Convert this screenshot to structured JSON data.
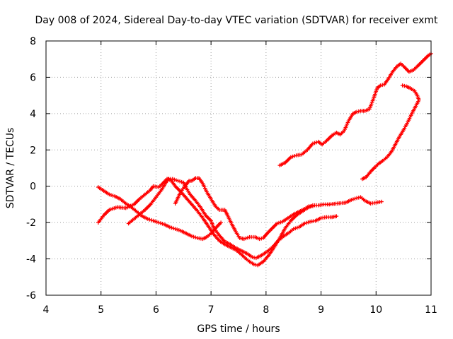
{
  "chart_data": {
    "type": "scatter",
    "title": "Day 008 of 2024, Sidereal Day-to-day VTEC variation (SDTVAR) for receiver exmt",
    "xlabel": "GPS time / hours",
    "ylabel": "SDTVAR / TECUs",
    "xlim": [
      4,
      11
    ],
    "ylim": [
      -6,
      8
    ],
    "xticks": [
      4,
      5,
      6,
      7,
      8,
      9,
      10,
      11
    ],
    "yticks": [
      -6,
      -4,
      -2,
      0,
      2,
      4,
      6,
      8
    ],
    "grid": true,
    "marker": "plus",
    "color": "#ff0000",
    "series": [
      {
        "points": [
          [
            4.95,
            -0.05
          ],
          [
            5.05,
            -0.25
          ],
          [
            5.15,
            -0.45
          ],
          [
            5.25,
            -0.55
          ],
          [
            5.35,
            -0.7
          ],
          [
            5.45,
            -0.95
          ],
          [
            5.55,
            -1.15
          ],
          [
            5.65,
            -1.4
          ],
          [
            5.75,
            -1.65
          ],
          [
            5.85,
            -1.8
          ],
          [
            5.95,
            -1.9
          ],
          [
            6.05,
            -2.0
          ],
          [
            6.15,
            -2.1
          ],
          [
            6.25,
            -2.25
          ],
          [
            6.35,
            -2.35
          ],
          [
            6.45,
            -2.45
          ],
          [
            6.55,
            -2.6
          ],
          [
            6.65,
            -2.75
          ],
          [
            6.75,
            -2.85
          ],
          [
            6.85,
            -2.9
          ],
          [
            6.92,
            -2.8
          ],
          [
            7.0,
            -2.6
          ],
          [
            7.1,
            -2.25
          ],
          [
            7.18,
            -2.0
          ]
        ]
      },
      {
        "points": [
          [
            4.95,
            -2.0
          ],
          [
            5.05,
            -1.6
          ],
          [
            5.15,
            -1.3
          ],
          [
            5.3,
            -1.15
          ],
          [
            5.45,
            -1.2
          ],
          [
            5.6,
            -1.0
          ],
          [
            5.7,
            -0.7
          ],
          [
            5.8,
            -0.45
          ],
          [
            5.9,
            -0.2
          ],
          [
            5.95,
            0.0
          ],
          [
            6.05,
            -0.05
          ],
          [
            6.12,
            0.15
          ],
          [
            6.2,
            0.4
          ],
          [
            6.3,
            0.4
          ],
          [
            6.4,
            0.3
          ],
          [
            6.5,
            0.2
          ],
          [
            6.55,
            -0.1
          ],
          [
            6.62,
            -0.45
          ],
          [
            6.72,
            -0.8
          ],
          [
            6.82,
            -1.2
          ],
          [
            6.9,
            -1.6
          ],
          [
            7.0,
            -1.9
          ],
          [
            7.05,
            -2.3
          ],
          [
            7.15,
            -2.7
          ],
          [
            7.25,
            -3.05
          ],
          [
            7.35,
            -3.2
          ],
          [
            7.45,
            -3.4
          ],
          [
            7.55,
            -3.55
          ],
          [
            7.65,
            -3.7
          ],
          [
            7.75,
            -3.9
          ],
          [
            7.82,
            -3.95
          ],
          [
            7.92,
            -3.8
          ],
          [
            8.02,
            -3.6
          ],
          [
            8.12,
            -3.35
          ],
          [
            8.22,
            -3.0
          ],
          [
            8.32,
            -2.75
          ],
          [
            8.42,
            -2.55
          ],
          [
            8.5,
            -2.35
          ],
          [
            8.6,
            -2.25
          ],
          [
            8.7,
            -2.05
          ],
          [
            8.8,
            -1.95
          ],
          [
            8.9,
            -1.9
          ],
          [
            9.0,
            -1.75
          ],
          [
            9.1,
            -1.7
          ],
          [
            9.2,
            -1.7
          ],
          [
            9.28,
            -1.65
          ]
        ]
      },
      {
        "points": [
          [
            5.5,
            -2.05
          ],
          [
            5.6,
            -1.8
          ],
          [
            5.7,
            -1.55
          ],
          [
            5.8,
            -1.3
          ],
          [
            5.9,
            -1.0
          ],
          [
            6.0,
            -0.6
          ],
          [
            6.1,
            -0.2
          ],
          [
            6.18,
            0.2
          ],
          [
            6.22,
            0.4
          ],
          [
            6.28,
            0.3
          ],
          [
            6.35,
            0.0
          ],
          [
            6.45,
            -0.3
          ],
          [
            6.55,
            -0.65
          ],
          [
            6.65,
            -1.0
          ],
          [
            6.75,
            -1.35
          ],
          [
            6.85,
            -1.75
          ],
          [
            6.95,
            -2.2
          ],
          [
            7.05,
            -2.65
          ],
          [
            7.15,
            -3.0
          ],
          [
            7.25,
            -3.2
          ],
          [
            7.35,
            -3.35
          ],
          [
            7.45,
            -3.5
          ],
          [
            7.55,
            -3.75
          ],
          [
            7.62,
            -3.95
          ],
          [
            7.7,
            -4.15
          ],
          [
            7.78,
            -4.3
          ],
          [
            7.85,
            -4.35
          ],
          [
            7.95,
            -4.15
          ],
          [
            8.05,
            -3.8
          ],
          [
            8.15,
            -3.35
          ],
          [
            8.25,
            -2.85
          ],
          [
            8.35,
            -2.3
          ],
          [
            8.45,
            -1.9
          ],
          [
            8.55,
            -1.6
          ],
          [
            8.65,
            -1.4
          ],
          [
            8.75,
            -1.2
          ],
          [
            8.85,
            -1.05
          ],
          [
            8.95,
            -1.05
          ],
          [
            9.05,
            -1.0
          ],
          [
            9.15,
            -1.0
          ],
          [
            9.3,
            -0.95
          ],
          [
            9.45,
            -0.9
          ],
          [
            9.55,
            -0.75
          ],
          [
            9.65,
            -0.65
          ],
          [
            9.72,
            -0.6
          ],
          [
            9.8,
            -0.8
          ],
          [
            9.9,
            -0.95
          ],
          [
            10.0,
            -0.9
          ],
          [
            10.1,
            -0.85
          ]
        ]
      },
      {
        "points": [
          [
            6.35,
            -0.95
          ],
          [
            6.45,
            -0.3
          ],
          [
            6.55,
            0.1
          ],
          [
            6.6,
            0.3
          ],
          [
            6.65,
            0.3
          ],
          [
            6.72,
            0.45
          ],
          [
            6.78,
            0.45
          ],
          [
            6.85,
            0.15
          ],
          [
            6.92,
            -0.3
          ],
          [
            7.0,
            -0.7
          ],
          [
            7.08,
            -1.1
          ],
          [
            7.15,
            -1.3
          ],
          [
            7.25,
            -1.3
          ],
          [
            7.3,
            -1.6
          ],
          [
            7.38,
            -2.1
          ],
          [
            7.45,
            -2.5
          ],
          [
            7.52,
            -2.85
          ],
          [
            7.6,
            -2.9
          ],
          [
            7.7,
            -2.8
          ],
          [
            7.8,
            -2.8
          ],
          [
            7.88,
            -2.9
          ],
          [
            7.95,
            -2.85
          ],
          [
            8.02,
            -2.6
          ],
          [
            8.1,
            -2.35
          ],
          [
            8.2,
            -2.05
          ],
          [
            8.3,
            -1.95
          ],
          [
            8.4,
            -1.75
          ],
          [
            8.5,
            -1.55
          ],
          [
            8.6,
            -1.4
          ],
          [
            8.7,
            -1.25
          ],
          [
            8.78,
            -1.1
          ],
          [
            8.85,
            -1.1
          ]
        ]
      },
      {
        "points": [
          [
            8.25,
            1.15
          ],
          [
            8.35,
            1.3
          ],
          [
            8.45,
            1.6
          ],
          [
            8.55,
            1.7
          ],
          [
            8.65,
            1.75
          ],
          [
            8.75,
            2.0
          ],
          [
            8.85,
            2.35
          ],
          [
            8.95,
            2.45
          ],
          [
            9.02,
            2.3
          ],
          [
            9.1,
            2.5
          ],
          [
            9.2,
            2.8
          ],
          [
            9.28,
            2.95
          ],
          [
            9.35,
            2.85
          ],
          [
            9.42,
            3.05
          ],
          [
            9.5,
            3.6
          ],
          [
            9.58,
            4.0
          ],
          [
            9.65,
            4.1
          ],
          [
            9.72,
            4.15
          ],
          [
            9.8,
            4.15
          ],
          [
            9.88,
            4.25
          ],
          [
            9.95,
            4.8
          ],
          [
            10.02,
            5.4
          ],
          [
            10.08,
            5.55
          ],
          [
            10.15,
            5.6
          ],
          [
            10.22,
            5.9
          ],
          [
            10.3,
            6.3
          ],
          [
            10.38,
            6.6
          ],
          [
            10.45,
            6.75
          ],
          [
            10.52,
            6.55
          ],
          [
            10.6,
            6.3
          ],
          [
            10.68,
            6.4
          ],
          [
            10.75,
            6.6
          ],
          [
            10.85,
            6.9
          ],
          [
            10.95,
            7.2
          ],
          [
            11.0,
            7.3
          ]
        ]
      },
      {
        "points": [
          [
            9.75,
            0.4
          ],
          [
            9.82,
            0.5
          ],
          [
            9.9,
            0.8
          ],
          [
            9.98,
            1.05
          ],
          [
            10.05,
            1.25
          ],
          [
            10.12,
            1.4
          ],
          [
            10.2,
            1.6
          ],
          [
            10.28,
            1.9
          ],
          [
            10.35,
            2.3
          ],
          [
            10.42,
            2.7
          ],
          [
            10.5,
            3.1
          ],
          [
            10.58,
            3.55
          ],
          [
            10.65,
            4.0
          ],
          [
            10.72,
            4.4
          ],
          [
            10.78,
            4.75
          ],
          [
            10.75,
            5.0
          ],
          [
            10.7,
            5.25
          ],
          [
            10.62,
            5.4
          ],
          [
            10.55,
            5.5
          ],
          [
            10.48,
            5.55
          ]
        ]
      }
    ]
  }
}
